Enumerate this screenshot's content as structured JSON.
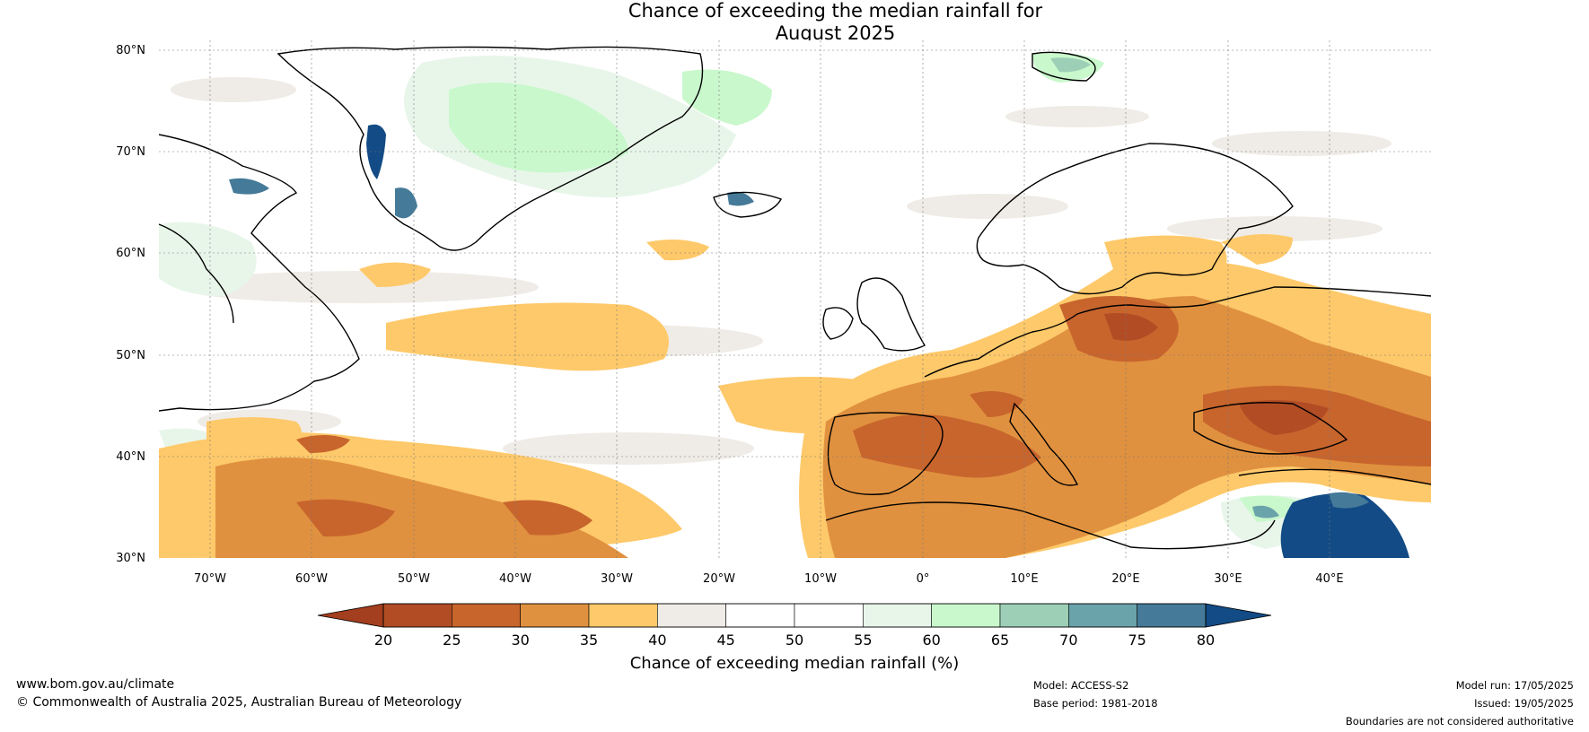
{
  "title": {
    "line1": "Chance of exceeding the median rainfall for",
    "line2": "August 2025"
  },
  "map": {
    "lat_labels": [
      "80°N",
      "70°N",
      "60°N",
      "50°N",
      "40°N",
      "30°N"
    ],
    "lat_values": [
      80,
      70,
      60,
      50,
      40,
      30
    ],
    "lon_labels": [
      "70°W",
      "60°W",
      "50°W",
      "40°W",
      "30°W",
      "20°W",
      "10°W",
      "0°",
      "10°E",
      "20°E",
      "30°E",
      "40°E"
    ],
    "lon_values": [
      -70,
      -60,
      -50,
      -40,
      -30,
      -20,
      -10,
      0,
      10,
      20,
      30,
      40
    ],
    "lon_range": [
      -75,
      50
    ],
    "lat_range": [
      30,
      81
    ]
  },
  "colorbar": {
    "ticks": [
      "20",
      "25",
      "30",
      "35",
      "40",
      "45",
      "50",
      "55",
      "60",
      "65",
      "70",
      "75",
      "80"
    ],
    "colors": [
      "#a33e1e",
      "#b24c25",
      "#c8652d",
      "#e0913f",
      "#fec96a",
      "#efebe6",
      "#ffffff",
      "#ffffff",
      "#e8f6ea",
      "#c9f8cc",
      "#9ccfb6",
      "#6aa3aa",
      "#457a99"
    ],
    "under_color": "#a33e1e",
    "over_color": "#124b85",
    "label": "Chance of exceeding median rainfall (%)"
  },
  "footer": {
    "website": "www.bom.gov.au/climate",
    "copyright": "© Commonwealth of Australia 2025, Australian Bureau of Meteorology",
    "model": "Model: ACCESS-S2",
    "base_period": "Base period: 1981-2018",
    "model_run": "Model run: 17/05/2025",
    "issued": "Issued: 19/05/2025",
    "disclaimer": "Boundaries are not considered authoritative"
  }
}
